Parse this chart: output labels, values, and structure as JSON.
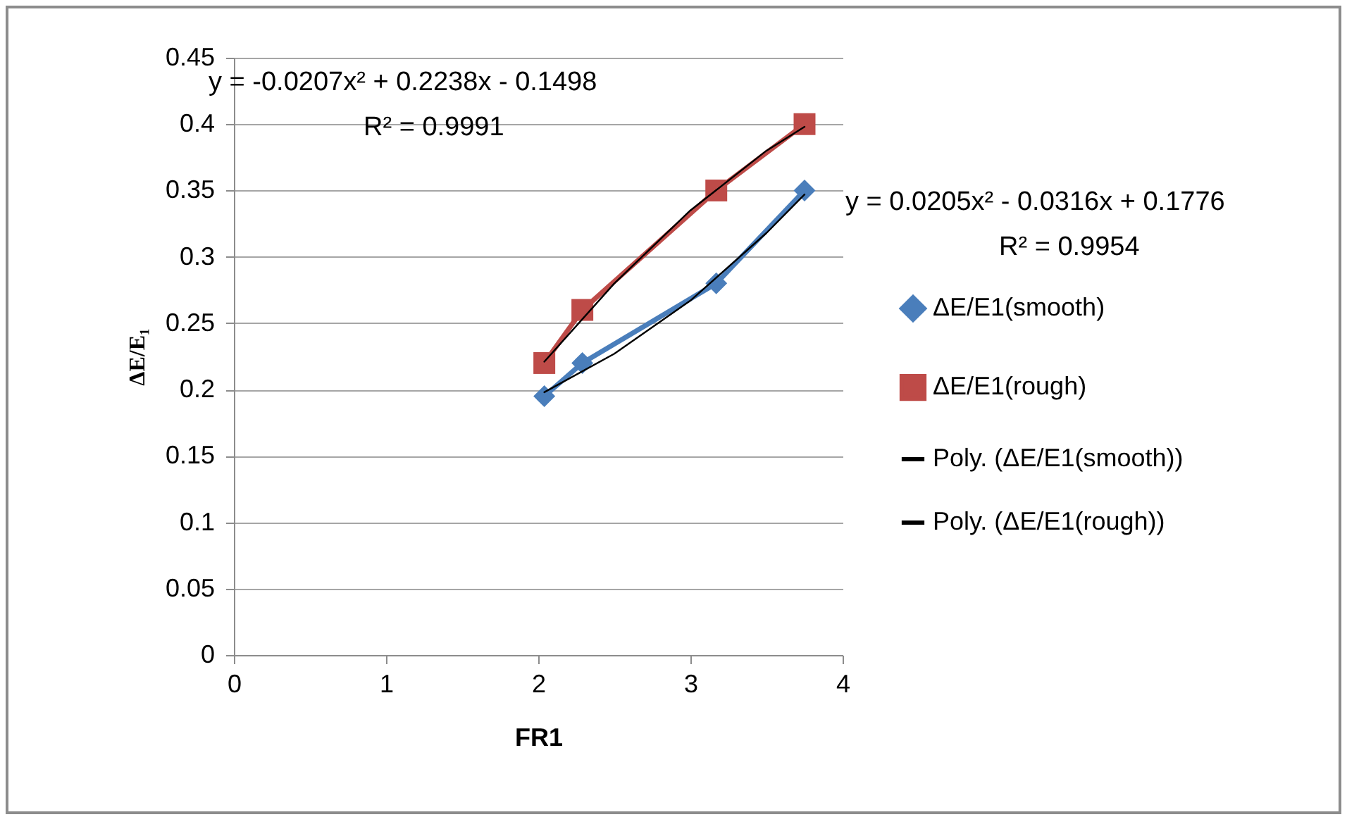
{
  "chart_data": {
    "type": "line",
    "xlabel": "FR1",
    "ylabel": "ΔE/E₁",
    "xlim": [
      0,
      4
    ],
    "xticks": [
      0,
      1,
      2,
      3,
      4
    ],
    "ylim": [
      0,
      0.45
    ],
    "yticks": [
      0,
      0.05,
      0.1,
      0.15,
      0.2,
      0.25,
      0.3,
      0.35,
      0.4,
      0.45
    ],
    "grid": "y",
    "legend": "right",
    "series": [
      {
        "name": "ΔE/E1(smooth)",
        "color": "#4a7ebb",
        "marker": "diamond",
        "x": [
          2.04,
          2.29,
          3.17,
          3.75
        ],
        "values": [
          0.195,
          0.22,
          0.28,
          0.35
        ]
      },
      {
        "name": "ΔE/E1(rough)",
        "color": "#be4b48",
        "marker": "square",
        "x": [
          2.04,
          2.29,
          3.17,
          3.75
        ],
        "values": [
          0.22,
          0.26,
          0.35,
          0.4
        ]
      },
      {
        "name": "Poly. (ΔE/E1(smooth))",
        "color": "#000000",
        "marker": "none",
        "x": [
          2.04,
          2.5,
          3,
          3.5,
          3.75
        ],
        "values": [
          0.198,
          0.227,
          0.267,
          0.318,
          0.347
        ]
      },
      {
        "name": "Poly. (ΔE/E1(rough))",
        "color": "#000000",
        "marker": "none",
        "x": [
          2.04,
          2.5,
          3,
          3.5,
          3.75
        ],
        "values": [
          0.221,
          0.28,
          0.335,
          0.38,
          0.398
        ]
      }
    ],
    "annotations": [
      "y = -0.0207x² + 0.2238x - 0.1498",
      "R² = 0.9991",
      "y = 0.0205x² - 0.0316x + 0.1776",
      "R² = 0.9954"
    ]
  }
}
